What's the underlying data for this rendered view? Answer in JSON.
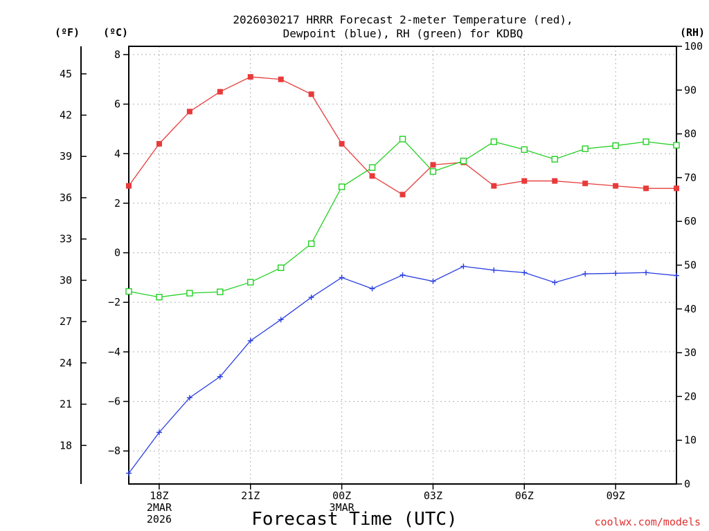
{
  "chart_data": {
    "type": "line",
    "title": "2026030217 HRRR Forecast 2-meter Temperature (red),",
    "subtitle": "Dewpoint (blue), RH (green) for KDBQ",
    "xlabel": "Forecast Time (UTC)",
    "credit": "coolwx.com/models",
    "units": {
      "fahrenheit": "(ºF)",
      "celsius": "(ºC)",
      "rh": "(RH)"
    },
    "x_hours": [
      17,
      18,
      19,
      20,
      21,
      22,
      23,
      24,
      25,
      26,
      27,
      28,
      29,
      30,
      31,
      32,
      33,
      34,
      35
    ],
    "xlim": [
      17,
      35
    ],
    "ylim_celsius": [
      -9.333,
      8.333
    ],
    "ylim_rh": [
      0,
      100
    ],
    "celsius_ticks": [
      {
        "v": -8,
        "label": "−8"
      },
      {
        "v": -6,
        "label": "−6"
      },
      {
        "v": -4,
        "label": "−4"
      },
      {
        "v": -2,
        "label": "−2"
      },
      {
        "v": 0,
        "label": "0"
      },
      {
        "v": 2,
        "label": "2"
      },
      {
        "v": 4,
        "label": "4"
      },
      {
        "v": 6,
        "label": "6"
      },
      {
        "v": 8,
        "label": "8"
      }
    ],
    "fahrenheit_ticks": [
      {
        "v": 18,
        "label": "18"
      },
      {
        "v": 21,
        "label": "21"
      },
      {
        "v": 24,
        "label": "24"
      },
      {
        "v": 27,
        "label": "27"
      },
      {
        "v": 30,
        "label": "30"
      },
      {
        "v": 33,
        "label": "33"
      },
      {
        "v": 36,
        "label": "36"
      },
      {
        "v": 39,
        "label": "39"
      },
      {
        "v": 42,
        "label": "42"
      },
      {
        "v": 45,
        "label": "45"
      }
    ],
    "rh_ticks": [
      {
        "v": 0,
        "label": "0"
      },
      {
        "v": 10,
        "label": "10"
      },
      {
        "v": 20,
        "label": "20"
      },
      {
        "v": 30,
        "label": "30"
      },
      {
        "v": 40,
        "label": "40"
      },
      {
        "v": 50,
        "label": "50"
      },
      {
        "v": 60,
        "label": "60"
      },
      {
        "v": 70,
        "label": "70"
      },
      {
        "v": 80,
        "label": "80"
      },
      {
        "v": 90,
        "label": "90"
      },
      {
        "v": 100,
        "label": "100"
      }
    ],
    "x_ticks": [
      {
        "v": 18,
        "lines": [
          "18Z",
          "2MAR",
          "2026"
        ]
      },
      {
        "v": 21,
        "lines": [
          "21Z"
        ]
      },
      {
        "v": 24,
        "lines": [
          "00Z",
          "3MAR"
        ]
      },
      {
        "v": 27,
        "lines": [
          "03Z"
        ]
      },
      {
        "v": 30,
        "lines": [
          "06Z"
        ]
      },
      {
        "v": 33,
        "lines": [
          "09Z"
        ]
      }
    ],
    "series": [
      {
        "name": "2-meter Temperature",
        "color": "#e83a3a",
        "marker": "square-filled",
        "axis": "celsius",
        "values": [
          2.7,
          4.4,
          5.7,
          6.5,
          7.1,
          7.0,
          6.4,
          4.4,
          3.1,
          2.35,
          3.55,
          3.65,
          2.7,
          2.9,
          2.9,
          2.8,
          2.7,
          2.6,
          2.6
        ]
      },
      {
        "name": "Dewpoint",
        "color": "#2a3ee0",
        "marker": "plus",
        "axis": "celsius",
        "values": [
          -8.9,
          -7.25,
          -5.85,
          -5.0,
          -3.55,
          -2.7,
          -1.8,
          -1.0,
          -1.45,
          -0.9,
          -1.15,
          -0.55,
          -0.7,
          -0.8,
          -1.2,
          -0.85,
          -0.83,
          -0.8,
          -0.92
        ]
      },
      {
        "name": "Relative Humidity",
        "color": "#22d022",
        "marker": "square-open",
        "axis": "rh",
        "values": [
          44,
          42.7,
          43.6,
          43.9,
          46.1,
          49.4,
          54.9,
          67.9,
          72.3,
          78.8,
          71.4,
          73.8,
          78.2,
          76.4,
          74.2,
          76.6,
          77.3,
          78.2,
          77.4
        ]
      }
    ]
  }
}
